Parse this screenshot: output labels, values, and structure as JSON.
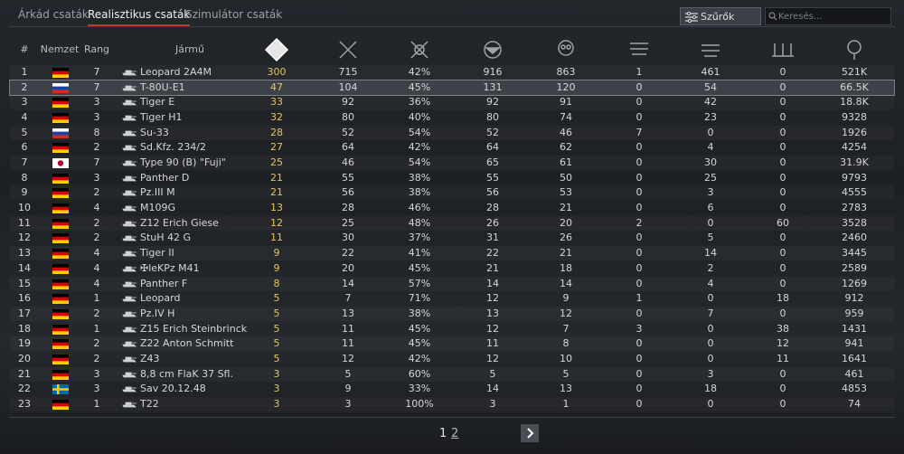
{
  "tabs": [
    "Árkád csaták",
    "Realisztikus csaták",
    "Szimulátor csaták"
  ],
  "filter_button": "Szűrők",
  "search_placeholder": "Keresés...",
  "pagination": [
    "1",
    "2"
  ],
  "table": {
    "headers": [
      "#",
      "Nemzet",
      "Rang",
      "Jármű"
    ],
    "rows": [
      {
        "flag": {
          "stripes": [
            "#000000",
            "#dd0000",
            "#ffce00"
          ]
        },
        "cells": [
          "1",
          "7",
          "Leopard 2A4M",
          "300",
          "715",
          "42%",
          "916",
          "863",
          "1",
          "461",
          "0",
          "521K"
        ]
      },
      {
        "flag": {
          "stripes": [
            "#ffffff",
            "#1c3fa8",
            "#d52b1e"
          ]
        },
        "highlighted": true,
        "cells": [
          "2",
          "7",
          "T-80U-E1",
          "47",
          "104",
          "45%",
          "131",
          "120",
          "0",
          "54",
          "0",
          "66.5K"
        ]
      },
      {
        "flag": {
          "stripes": [
            "#000000",
            "#dd0000",
            "#ffce00"
          ]
        },
        "cells": [
          "3",
          "3",
          "Tiger E",
          "33",
          "92",
          "36%",
          "92",
          "91",
          "0",
          "42",
          "0",
          "18.8K"
        ]
      },
      {
        "flag": {
          "stripes": [
            "#000000",
            "#dd0000",
            "#ffce00"
          ]
        },
        "cells": [
          "4",
          "3",
          "Tiger H1",
          "32",
          "80",
          "40%",
          "80",
          "74",
          "0",
          "23",
          "0",
          "9328"
        ]
      },
      {
        "flag": {
          "stripes": [
            "#ffffff",
            "#1c3fa8",
            "#d52b1e"
          ]
        },
        "cells": [
          "5",
          "8",
          "Su-33",
          "28",
          "52",
          "54%",
          "52",
          "46",
          "7",
          "0",
          "0",
          "1926"
        ]
      },
      {
        "flag": {
          "stripes": [
            "#000000",
            "#dd0000",
            "#ffce00"
          ]
        },
        "cells": [
          "6",
          "2",
          "Sd.Kfz. 234/2",
          "27",
          "64",
          "42%",
          "64",
          "62",
          "0",
          "4",
          "0",
          "4254"
        ]
      },
      {
        "flag": {
          "field": "#ffffff",
          "disc": "#bc002d"
        },
        "cells": [
          "7",
          "7",
          "Type 90 (B) \"Fuji\"",
          "25",
          "46",
          "54%",
          "65",
          "61",
          "0",
          "30",
          "0",
          "31.9K"
        ]
      },
      {
        "flag": {
          "stripes": [
            "#000000",
            "#dd0000",
            "#ffce00"
          ]
        },
        "cells": [
          "8",
          "3",
          "Panther D",
          "21",
          "55",
          "38%",
          "55",
          "50",
          "0",
          "25",
          "0",
          "9793"
        ]
      },
      {
        "flag": {
          "stripes": [
            "#000000",
            "#dd0000",
            "#ffce00"
          ]
        },
        "cells": [
          "9",
          "2",
          "Pz.III M",
          "21",
          "56",
          "38%",
          "56",
          "53",
          "0",
          "3",
          "0",
          "4555"
        ]
      },
      {
        "flag": {
          "stripes": [
            "#000000",
            "#dd0000",
            "#ffce00"
          ]
        },
        "cells": [
          "10",
          "4",
          "M109G",
          "13",
          "28",
          "46%",
          "28",
          "21",
          "0",
          "6",
          "0",
          "2783"
        ]
      },
      {
        "flag": {
          "stripes": [
            "#000000",
            "#dd0000",
            "#ffce00"
          ]
        },
        "cells": [
          "11",
          "2",
          "Z12 Erich Giese",
          "12",
          "25",
          "48%",
          "26",
          "20",
          "2",
          "0",
          "60",
          "3528"
        ]
      },
      {
        "flag": {
          "stripes": [
            "#000000",
            "#dd0000",
            "#ffce00"
          ]
        },
        "cells": [
          "12",
          "2",
          "StuH 42 G",
          "11",
          "30",
          "37%",
          "31",
          "26",
          "0",
          "5",
          "0",
          "2460"
        ]
      },
      {
        "flag": {
          "stripes": [
            "#000000",
            "#dd0000",
            "#ffce00"
          ]
        },
        "cells": [
          "13",
          "4",
          "Tiger II",
          "9",
          "22",
          "41%",
          "22",
          "21",
          "0",
          "14",
          "0",
          "3445"
        ]
      },
      {
        "flag": {
          "stripes": [
            "#000000",
            "#dd0000",
            "#ffce00"
          ]
        },
        "cells": [
          "14",
          "4",
          "✠leKPz M41",
          "9",
          "20",
          "45%",
          "21",
          "18",
          "0",
          "2",
          "0",
          "2589"
        ]
      },
      {
        "flag": {
          "stripes": [
            "#000000",
            "#dd0000",
            "#ffce00"
          ]
        },
        "cells": [
          "15",
          "4",
          "Panther F",
          "8",
          "14",
          "57%",
          "14",
          "14",
          "0",
          "4",
          "0",
          "1269"
        ]
      },
      {
        "flag": {
          "stripes": [
            "#000000",
            "#dd0000",
            "#ffce00"
          ]
        },
        "cells": [
          "16",
          "1",
          "Leopard",
          "5",
          "7",
          "71%",
          "12",
          "9",
          "1",
          "0",
          "18",
          "912"
        ]
      },
      {
        "flag": {
          "stripes": [
            "#000000",
            "#dd0000",
            "#ffce00"
          ]
        },
        "cells": [
          "17",
          "2",
          "Pz.IV H",
          "5",
          "13",
          "38%",
          "13",
          "12",
          "0",
          "7",
          "0",
          "959"
        ]
      },
      {
        "flag": {
          "stripes": [
            "#000000",
            "#dd0000",
            "#ffce00"
          ]
        },
        "cells": [
          "18",
          "1",
          "Z15 Erich Steinbrinck",
          "5",
          "11",
          "45%",
          "12",
          "7",
          "3",
          "0",
          "38",
          "1431"
        ]
      },
      {
        "flag": {
          "stripes": [
            "#000000",
            "#dd0000",
            "#ffce00"
          ]
        },
        "cells": [
          "19",
          "2",
          "Z22 Anton Schmitt",
          "5",
          "11",
          "45%",
          "11",
          "8",
          "0",
          "0",
          "12",
          "941"
        ]
      },
      {
        "flag": {
          "stripes": [
            "#000000",
            "#dd0000",
            "#ffce00"
          ]
        },
        "cells": [
          "20",
          "2",
          "Z43",
          "5",
          "12",
          "42%",
          "12",
          "10",
          "0",
          "0",
          "11",
          "1641"
        ]
      },
      {
        "flag": {
          "stripes": [
            "#000000",
            "#dd0000",
            "#ffce00"
          ]
        },
        "cells": [
          "21",
          "3",
          "8,8 cm FlaK 37 Sfl.",
          "3",
          "5",
          "60%",
          "5",
          "5",
          "0",
          "3",
          "0",
          "461"
        ]
      },
      {
        "flag": {
          "field": "#006aa7",
          "cross": "#fecc00"
        },
        "cells": [
          "22",
          "3",
          "Sav 20.12.48",
          "3",
          "9",
          "33%",
          "14",
          "13",
          "0",
          "18",
          "0",
          "4853"
        ]
      },
      {
        "flag": {
          "stripes": [
            "#000000",
            "#dd0000",
            "#ffce00"
          ]
        },
        "cells": [
          "23",
          "1",
          "T22",
          "3",
          "3",
          "100%",
          "3",
          "1",
          "0",
          "0",
          "0",
          "74"
        ]
      }
    ]
  }
}
